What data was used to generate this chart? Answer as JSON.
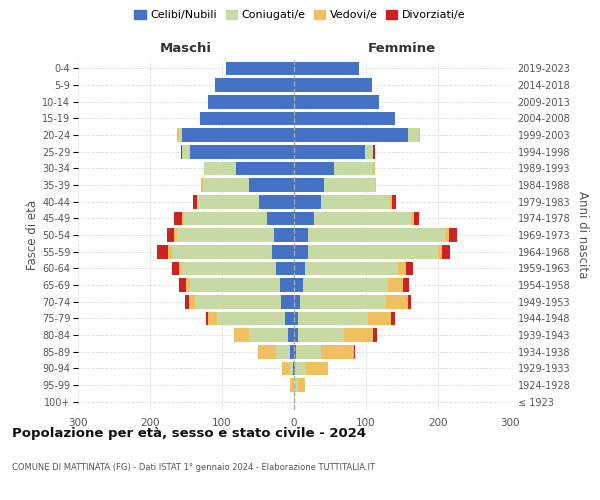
{
  "age_groups": [
    "100+",
    "95-99",
    "90-94",
    "85-89",
    "80-84",
    "75-79",
    "70-74",
    "65-69",
    "60-64",
    "55-59",
    "50-54",
    "45-49",
    "40-44",
    "35-39",
    "30-34",
    "25-29",
    "20-24",
    "15-19",
    "10-14",
    "5-9",
    "0-4"
  ],
  "birth_years": [
    "≤ 1923",
    "1924-1928",
    "1929-1933",
    "1934-1938",
    "1939-1943",
    "1944-1948",
    "1949-1953",
    "1954-1958",
    "1959-1963",
    "1964-1968",
    "1969-1973",
    "1974-1978",
    "1979-1983",
    "1984-1988",
    "1989-1993",
    "1994-1998",
    "1999-2003",
    "2004-2008",
    "2009-2013",
    "2014-2018",
    "2019-2023"
  ],
  "colors": {
    "celibi": "#4472C4",
    "coniugati": "#c8daa4",
    "vedovi": "#f0c060",
    "divorziati": "#cc2222"
  },
  "maschi": {
    "celibi": [
      0,
      0,
      2,
      5,
      8,
      12,
      18,
      20,
      25,
      30,
      28,
      38,
      48,
      62,
      80,
      145,
      155,
      130,
      120,
      110,
      95
    ],
    "coniugati": [
      0,
      0,
      5,
      20,
      55,
      95,
      120,
      125,
      130,
      140,
      135,
      115,
      85,
      65,
      45,
      10,
      5,
      0,
      0,
      0,
      0
    ],
    "vedovi": [
      0,
      5,
      10,
      25,
      20,
      12,
      8,
      5,
      5,
      5,
      3,
      3,
      2,
      2,
      0,
      0,
      2,
      0,
      0,
      0,
      0
    ],
    "divorziati": [
      0,
      0,
      0,
      0,
      0,
      3,
      5,
      10,
      10,
      15,
      10,
      10,
      5,
      0,
      0,
      2,
      0,
      0,
      0,
      0,
      0
    ]
  },
  "femmine": {
    "nubili": [
      0,
      0,
      2,
      3,
      5,
      5,
      8,
      12,
      15,
      20,
      20,
      28,
      38,
      42,
      55,
      98,
      158,
      140,
      118,
      108,
      90
    ],
    "coniugate": [
      0,
      5,
      15,
      35,
      65,
      98,
      120,
      118,
      130,
      180,
      190,
      135,
      95,
      70,
      55,
      12,
      15,
      0,
      0,
      0,
      0
    ],
    "vedove": [
      0,
      10,
      30,
      45,
      40,
      32,
      30,
      22,
      10,
      5,
      5,
      3,
      3,
      2,
      2,
      0,
      2,
      0,
      0,
      0,
      0
    ],
    "divorziate": [
      0,
      0,
      0,
      2,
      5,
      5,
      5,
      8,
      10,
      12,
      12,
      8,
      5,
      0,
      0,
      2,
      0,
      0,
      0,
      0,
      0
    ]
  },
  "title": "Popolazione per età, sesso e stato civile - 2024",
  "subtitle": "COMUNE DI MATTINATA (FG) - Dati ISTAT 1° gennaio 2024 - Elaborazione TUTTITALIA.IT",
  "xlabel_left": "Maschi",
  "xlabel_right": "Femmine",
  "ylabel_left": "Fasce di età",
  "ylabel_right": "Anni di nascita",
  "xlim": 300,
  "legend_labels": [
    "Celibi/Nubili",
    "Coniugati/e",
    "Vedovi/e",
    "Divorziati/e"
  ],
  "bg_color": "#ffffff",
  "grid_color": "#cccccc"
}
